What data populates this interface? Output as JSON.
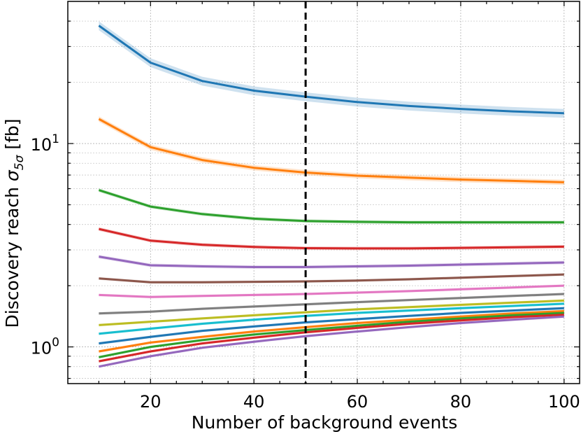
{
  "chart_data": {
    "type": "line",
    "xlabel": "Number of background events",
    "ylabel": "Discovery reach σ5σ [fb]",
    "ylabel_parts": {
      "main": "Discovery reach ",
      "sym": "σ",
      "sub": "5σ",
      "unit": " [fb]"
    },
    "yscale": "log",
    "xlim": [
      4,
      103
    ],
    "ylim": [
      0.66,
      50
    ],
    "xticks": [
      20,
      40,
      60,
      80,
      100
    ],
    "xtick_labels": [
      "20",
      "40",
      "60",
      "80",
      "100"
    ],
    "yticks_major": [
      1,
      10
    ],
    "ytick_labels": [
      {
        "base": "10",
        "exp": "0"
      },
      {
        "base": "10",
        "exp": "1"
      }
    ],
    "grid": true,
    "vline": {
      "x": 50,
      "style": "dashed",
      "color": "#000000"
    },
    "x": [
      10,
      20,
      30,
      40,
      50,
      60,
      70,
      80,
      90,
      100
    ],
    "series": [
      {
        "color": "#1f77b4",
        "band": 0.05,
        "values": [
          38,
          25,
          20.3,
          18.2,
          17.0,
          16.0,
          15.3,
          14.8,
          14.4,
          14.1
        ]
      },
      {
        "color": "#ff7f0e",
        "band": 0.03,
        "values": [
          13.2,
          9.6,
          8.3,
          7.6,
          7.2,
          6.95,
          6.8,
          6.65,
          6.55,
          6.45
        ]
      },
      {
        "color": "#2ca02c",
        "band": 0.02,
        "values": [
          5.9,
          4.9,
          4.5,
          4.27,
          4.16,
          4.12,
          4.1,
          4.1,
          4.1,
          4.1
        ]
      },
      {
        "color": "#d62728",
        "band": 0.02,
        "values": [
          3.8,
          3.33,
          3.18,
          3.1,
          3.06,
          3.05,
          3.05,
          3.07,
          3.09,
          3.11
        ]
      },
      {
        "color": "#9467bd",
        "band": 0.02,
        "values": [
          2.78,
          2.52,
          2.49,
          2.47,
          2.47,
          2.49,
          2.51,
          2.54,
          2.57,
          2.6
        ]
      },
      {
        "color": "#8c564b",
        "band": 0.015,
        "values": [
          2.17,
          2.08,
          2.08,
          2.09,
          2.1,
          2.12,
          2.15,
          2.19,
          2.23,
          2.27
        ]
      },
      {
        "color": "#e377c2",
        "band": 0.015,
        "values": [
          1.8,
          1.76,
          1.78,
          1.8,
          1.82,
          1.85,
          1.88,
          1.92,
          1.96,
          2.0
        ]
      },
      {
        "color": "#7f7f7f",
        "band": 0.015,
        "values": [
          1.46,
          1.49,
          1.54,
          1.58,
          1.62,
          1.66,
          1.7,
          1.74,
          1.78,
          1.82
        ]
      },
      {
        "color": "#bcbd22",
        "band": 0.015,
        "values": [
          1.28,
          1.33,
          1.38,
          1.43,
          1.48,
          1.53,
          1.57,
          1.61,
          1.65,
          1.69
        ]
      },
      {
        "color": "#17becf",
        "band": 0.015,
        "values": [
          1.16,
          1.23,
          1.3,
          1.36,
          1.42,
          1.47,
          1.51,
          1.55,
          1.59,
          1.63
        ]
      },
      {
        "color": "#1f77b4",
        "band": 0.015,
        "values": [
          1.04,
          1.12,
          1.2,
          1.26,
          1.32,
          1.37,
          1.42,
          1.47,
          1.51,
          1.55
        ]
      },
      {
        "color": "#ff7f0e",
        "band": 0.015,
        "values": [
          0.95,
          1.05,
          1.12,
          1.19,
          1.25,
          1.31,
          1.36,
          1.41,
          1.46,
          1.5
        ]
      },
      {
        "color": "#2ca02c",
        "band": 0.015,
        "values": [
          0.89,
          1.0,
          1.08,
          1.15,
          1.21,
          1.27,
          1.33,
          1.38,
          1.43,
          1.47
        ]
      },
      {
        "color": "#d62728",
        "band": 0.015,
        "values": [
          0.85,
          0.95,
          1.04,
          1.11,
          1.18,
          1.24,
          1.3,
          1.35,
          1.4,
          1.44
        ]
      },
      {
        "color": "#9467bd",
        "band": 0.015,
        "values": [
          0.8,
          0.9,
          0.99,
          1.06,
          1.13,
          1.19,
          1.25,
          1.31,
          1.36,
          1.41
        ]
      }
    ]
  }
}
